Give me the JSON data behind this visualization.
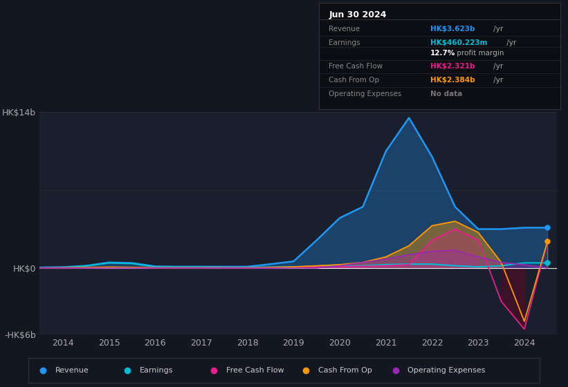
{
  "bg_color": "#131722",
  "chart_bg": "#1a1f2e",
  "years": [
    2013.5,
    2014.0,
    2014.5,
    2015.0,
    2015.5,
    2016.0,
    2016.5,
    2017.0,
    2017.5,
    2018.0,
    2018.5,
    2019.0,
    2019.5,
    2020.0,
    2020.5,
    2021.0,
    2021.5,
    2022.0,
    2022.5,
    2023.0,
    2023.5,
    2024.0,
    2024.5
  ],
  "revenue": [
    0.05,
    0.08,
    0.2,
    0.5,
    0.45,
    0.15,
    0.12,
    0.12,
    0.12,
    0.12,
    0.35,
    0.6,
    2.5,
    4.5,
    5.5,
    10.5,
    13.5,
    10.0,
    5.5,
    3.5,
    3.5,
    3.623,
    3.623
  ],
  "earnings": [
    0.0,
    0.05,
    0.18,
    0.45,
    0.4,
    0.1,
    0.08,
    0.08,
    0.05,
    0.05,
    0.08,
    0.1,
    0.15,
    0.15,
    0.2,
    0.3,
    0.35,
    0.35,
    0.2,
    0.1,
    0.2,
    0.46,
    0.46
  ],
  "free_cash_flow": [
    0.0,
    0.0,
    0.0,
    0.05,
    0.04,
    0.0,
    0.0,
    0.0,
    0.0,
    0.0,
    0.0,
    0.05,
    0.1,
    0.12,
    0.15,
    0.2,
    0.3,
    2.5,
    3.5,
    2.5,
    -3.0,
    -5.5,
    2.321
  ],
  "cash_from_op": [
    0.0,
    0.02,
    0.05,
    0.08,
    0.06,
    0.02,
    0.02,
    0.02,
    0.02,
    0.02,
    0.05,
    0.1,
    0.2,
    0.3,
    0.5,
    1.0,
    2.0,
    3.8,
    4.2,
    3.2,
    0.5,
    -4.8,
    2.384
  ],
  "op_expenses": [
    0.0,
    0.0,
    0.0,
    0.0,
    0.0,
    0.0,
    0.0,
    0.0,
    0.0,
    0.0,
    0.0,
    0.0,
    0.0,
    0.2,
    0.5,
    0.8,
    1.2,
    1.5,
    1.6,
    1.0,
    0.5,
    0.3,
    0.0
  ],
  "revenue_color": "#2196f3",
  "earnings_color": "#00bcd4",
  "fcf_color": "#e91e8c",
  "cashop_color": "#ff9800",
  "opex_color": "#9c27b0",
  "xmin": 2013.5,
  "xmax": 2024.7,
  "ymin": -6,
  "ymax": 14,
  "ytick_labels": [
    "-HK$6b",
    "HK$0",
    "HK$14b"
  ],
  "ytick_vals": [
    -6,
    0,
    14
  ],
  "xtick_years": [
    2014,
    2015,
    2016,
    2017,
    2018,
    2019,
    2020,
    2021,
    2022,
    2023,
    2024
  ],
  "info_box_title": "Jun 30 2024",
  "info_rows": [
    {
      "label": "Revenue",
      "value": "HK$3.623b",
      "suffix": " /yr",
      "value_color": "#2196f3",
      "is_margin": false
    },
    {
      "label": "Earnings",
      "value": "HK$460.223m",
      "suffix": " /yr",
      "value_color": "#00bcd4",
      "is_margin": false
    },
    {
      "label": "",
      "value": "12.7%",
      "suffix": " profit margin",
      "value_color": "#ffffff",
      "is_margin": true
    },
    {
      "label": "Free Cash Flow",
      "value": "HK$2.321b",
      "suffix": " /yr",
      "value_color": "#e91e8c",
      "is_margin": false
    },
    {
      "label": "Cash From Op",
      "value": "HK$2.384b",
      "suffix": " /yr",
      "value_color": "#ff9800",
      "is_margin": false
    },
    {
      "label": "Operating Expenses",
      "value": "No data",
      "suffix": "",
      "value_color": "#777777",
      "is_margin": false
    }
  ],
  "legend_items": [
    {
      "label": "Revenue",
      "color": "#2196f3"
    },
    {
      "label": "Earnings",
      "color": "#00bcd4"
    },
    {
      "label": "Free Cash Flow",
      "color": "#e91e8c"
    },
    {
      "label": "Cash From Op",
      "color": "#ff9800"
    },
    {
      "label": "Operating Expenses",
      "color": "#9c27b0"
    }
  ]
}
